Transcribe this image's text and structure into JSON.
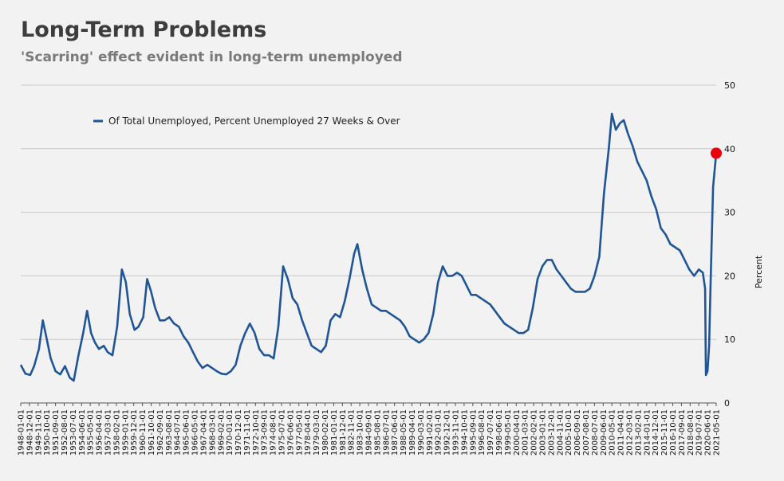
{
  "chart_data": {
    "type": "line",
    "title": "Long-Term Problems",
    "subtitle": "'Scarring' effect evident in long-term unemployed",
    "xlabel": "",
    "ylabel": "Percent",
    "ylim": [
      0,
      50
    ],
    "yticks": [
      0,
      10,
      20,
      30,
      40,
      50
    ],
    "y_axis_position": "right",
    "grid": "horizontal",
    "legend_position": "top-left",
    "series_color": "#1f5596",
    "marker_color": "#e8000b",
    "series": [
      {
        "name": "Of Total Unemployed, Percent Unemployed 27 Weeks & Over",
        "points": [
          [
            "1948-01-01",
            6.0
          ],
          [
            "1948-07-01",
            4.6
          ],
          [
            "1949-01-01",
            4.4
          ],
          [
            "1949-06-01",
            5.8
          ],
          [
            "1949-12-01",
            8.5
          ],
          [
            "1950-05-01",
            13.0
          ],
          [
            "1950-10-01",
            10.0
          ],
          [
            "1951-03-01",
            7.0
          ],
          [
            "1951-09-01",
            5.0
          ],
          [
            "1952-03-01",
            4.5
          ],
          [
            "1952-09-01",
            5.8
          ],
          [
            "1953-03-01",
            4.0
          ],
          [
            "1953-08-01",
            3.5
          ],
          [
            "1954-02-01",
            7.5
          ],
          [
            "1954-08-01",
            11.0
          ],
          [
            "1955-01-01",
            14.5
          ],
          [
            "1955-06-01",
            11.0
          ],
          [
            "1955-11-01",
            9.5
          ],
          [
            "1956-04-01",
            8.5
          ],
          [
            "1956-10-01",
            9.0
          ],
          [
            "1957-03-01",
            8.0
          ],
          [
            "1957-09-01",
            7.5
          ],
          [
            "1958-03-01",
            12.0
          ],
          [
            "1958-09-01",
            21.0
          ],
          [
            "1959-02-01",
            19.0
          ],
          [
            "1959-07-01",
            14.0
          ],
          [
            "1960-01-01",
            11.5
          ],
          [
            "1960-06-01",
            12.0
          ],
          [
            "1960-12-01",
            13.5
          ],
          [
            "1961-05-01",
            19.5
          ],
          [
            "1961-10-01",
            17.5
          ],
          [
            "1962-03-01",
            15.0
          ],
          [
            "1962-09-01",
            13.0
          ],
          [
            "1963-03-01",
            13.0
          ],
          [
            "1963-09-01",
            13.5
          ],
          [
            "1964-03-01",
            12.5
          ],
          [
            "1964-09-01",
            12.0
          ],
          [
            "1965-03-01",
            10.5
          ],
          [
            "1965-09-01",
            9.5
          ],
          [
            "1966-03-01",
            8.0
          ],
          [
            "1966-09-01",
            6.5
          ],
          [
            "1967-03-01",
            5.5
          ],
          [
            "1967-09-01",
            6.0
          ],
          [
            "1968-03-01",
            5.5
          ],
          [
            "1968-09-01",
            5.0
          ],
          [
            "1969-03-01",
            4.6
          ],
          [
            "1969-09-01",
            4.5
          ],
          [
            "1970-03-01",
            5.0
          ],
          [
            "1970-09-01",
            6.0
          ],
          [
            "1971-03-01",
            9.0
          ],
          [
            "1971-09-01",
            11.0
          ],
          [
            "1972-03-01",
            12.5
          ],
          [
            "1972-09-01",
            11.0
          ],
          [
            "1973-03-01",
            8.5
          ],
          [
            "1973-09-01",
            7.5
          ],
          [
            "1974-03-01",
            7.5
          ],
          [
            "1974-09-01",
            7.0
          ],
          [
            "1975-03-01",
            12.0
          ],
          [
            "1975-09-01",
            21.5
          ],
          [
            "1976-03-01",
            19.5
          ],
          [
            "1976-09-01",
            16.5
          ],
          [
            "1977-03-01",
            15.5
          ],
          [
            "1977-09-01",
            13.0
          ],
          [
            "1978-03-01",
            11.0
          ],
          [
            "1978-09-01",
            9.0
          ],
          [
            "1979-03-01",
            8.5
          ],
          [
            "1979-09-01",
            8.0
          ],
          [
            "1980-03-01",
            9.0
          ],
          [
            "1980-09-01",
            13.0
          ],
          [
            "1981-03-01",
            14.0
          ],
          [
            "1981-09-01",
            13.5
          ],
          [
            "1982-03-01",
            16.0
          ],
          [
            "1982-09-01",
            19.5
          ],
          [
            "1983-03-01",
            23.5
          ],
          [
            "1983-07-01",
            25.0
          ],
          [
            "1984-01-01",
            21.0
          ],
          [
            "1984-07-01",
            18.0
          ],
          [
            "1985-01-01",
            15.5
          ],
          [
            "1985-07-01",
            15.0
          ],
          [
            "1986-01-01",
            14.5
          ],
          [
            "1986-07-01",
            14.5
          ],
          [
            "1987-01-01",
            14.0
          ],
          [
            "1987-07-01",
            13.5
          ],
          [
            "1988-01-01",
            13.0
          ],
          [
            "1988-07-01",
            12.0
          ],
          [
            "1989-01-01",
            10.5
          ],
          [
            "1989-07-01",
            10.0
          ],
          [
            "1990-01-01",
            9.5
          ],
          [
            "1990-07-01",
            10.0
          ],
          [
            "1991-01-01",
            11.0
          ],
          [
            "1991-07-01",
            14.0
          ],
          [
            "1992-01-01",
            19.0
          ],
          [
            "1992-07-01",
            21.5
          ],
          [
            "1993-01-01",
            20.0
          ],
          [
            "1993-07-01",
            20.0
          ],
          [
            "1994-01-01",
            20.5
          ],
          [
            "1994-07-01",
            20.0
          ],
          [
            "1995-01-01",
            18.5
          ],
          [
            "1995-07-01",
            17.0
          ],
          [
            "1996-01-01",
            17.0
          ],
          [
            "1996-07-01",
            16.5
          ],
          [
            "1997-01-01",
            16.0
          ],
          [
            "1997-07-01",
            15.5
          ],
          [
            "1998-01-01",
            14.5
          ],
          [
            "1998-07-01",
            13.5
          ],
          [
            "1999-01-01",
            12.5
          ],
          [
            "1999-07-01",
            12.0
          ],
          [
            "2000-01-01",
            11.5
          ],
          [
            "2000-07-01",
            11.0
          ],
          [
            "2001-01-01",
            11.0
          ],
          [
            "2001-07-01",
            11.5
          ],
          [
            "2002-01-01",
            15.0
          ],
          [
            "2002-07-01",
            19.5
          ],
          [
            "2003-01-01",
            21.5
          ],
          [
            "2003-07-01",
            22.5
          ],
          [
            "2004-01-01",
            22.5
          ],
          [
            "2004-07-01",
            21.0
          ],
          [
            "2005-01-01",
            20.0
          ],
          [
            "2005-07-01",
            19.0
          ],
          [
            "2006-01-01",
            18.0
          ],
          [
            "2006-07-01",
            17.5
          ],
          [
            "2007-01-01",
            17.5
          ],
          [
            "2007-07-01",
            17.5
          ],
          [
            "2008-01-01",
            18.0
          ],
          [
            "2008-07-01",
            20.0
          ],
          [
            "2009-01-01",
            23.0
          ],
          [
            "2009-07-01",
            33.0
          ],
          [
            "2010-01-01",
            40.0
          ],
          [
            "2010-05-01",
            45.5
          ],
          [
            "2010-10-01",
            43.0
          ],
          [
            "2011-03-01",
            44.0
          ],
          [
            "2011-08-01",
            44.5
          ],
          [
            "2012-01-01",
            42.5
          ],
          [
            "2012-07-01",
            40.5
          ],
          [
            "2013-01-01",
            38.0
          ],
          [
            "2013-07-01",
            36.5
          ],
          [
            "2014-01-01",
            35.0
          ],
          [
            "2014-07-01",
            32.5
          ],
          [
            "2015-01-01",
            30.5
          ],
          [
            "2015-07-01",
            27.5
          ],
          [
            "2016-01-01",
            26.5
          ],
          [
            "2016-07-01",
            25.0
          ],
          [
            "2017-01-01",
            24.5
          ],
          [
            "2017-07-01",
            24.0
          ],
          [
            "2018-01-01",
            22.5
          ],
          [
            "2018-07-01",
            21.0
          ],
          [
            "2019-01-01",
            20.0
          ],
          [
            "2019-07-01",
            21.0
          ],
          [
            "2019-12-01",
            20.5
          ],
          [
            "2020-03-01",
            18.0
          ],
          [
            "2020-04-01",
            4.4
          ],
          [
            "2020-06-01",
            5.0
          ],
          [
            "2020-08-01",
            9.0
          ],
          [
            "2020-10-01",
            19.5
          ],
          [
            "2021-01-01",
            34.0
          ],
          [
            "2021-05-01",
            39.3
          ]
        ]
      }
    ],
    "highlight_point": [
      "2021-05-01",
      39.3
    ],
    "xtick_labels": [
      "1948-01-01",
      "1948-12-01",
      "1949-11-01",
      "1950-10-01",
      "1951-09-01",
      "1952-08-01",
      "1953-07-01",
      "1954-06-01",
      "1955-05-01",
      "1956-04-01",
      "1957-03-01",
      "1958-02-01",
      "1959-01-01",
      "1959-12-01",
      "1960-11-01",
      "1961-10-01",
      "1962-09-01",
      "1963-08-01",
      "1964-07-01",
      "1965-06-01",
      "1966-05-01",
      "1967-04-01",
      "1968-03-01",
      "1969-02-01",
      "1970-01-01",
      "1970-12-01",
      "1971-11-01",
      "1972-10-01",
      "1973-09-01",
      "1974-08-01",
      "1975-07-01",
      "1976-06-01",
      "1977-05-01",
      "1978-04-01",
      "1979-03-01",
      "1980-02-01",
      "1981-01-01",
      "1981-12-01",
      "1982-11-01",
      "1983-10-01",
      "1984-09-01",
      "1985-08-01",
      "1986-07-01",
      "1987-06-01",
      "1988-05-01",
      "1989-04-01",
      "1990-03-01",
      "1991-02-01",
      "1992-01-01",
      "1992-12-01",
      "1993-11-01",
      "1994-10-01",
      "1995-09-01",
      "1996-08-01",
      "1997-07-01",
      "1998-06-01",
      "1999-05-01",
      "2000-04-01",
      "2001-03-01",
      "2002-02-01",
      "2003-01-01",
      "2003-12-01",
      "2004-11-01",
      "2005-10-01",
      "2006-09-01",
      "2007-08-01",
      "2008-07-01",
      "2009-06-01",
      "2010-05-01",
      "2011-04-01",
      "2012-03-01",
      "2013-02-01",
      "2014-01-01",
      "2014-12-01",
      "2015-11-01",
      "2016-10-01",
      "2017-09-01",
      "2018-08-01",
      "2019-07-01",
      "2020-06-01",
      "2021-05-01"
    ]
  }
}
